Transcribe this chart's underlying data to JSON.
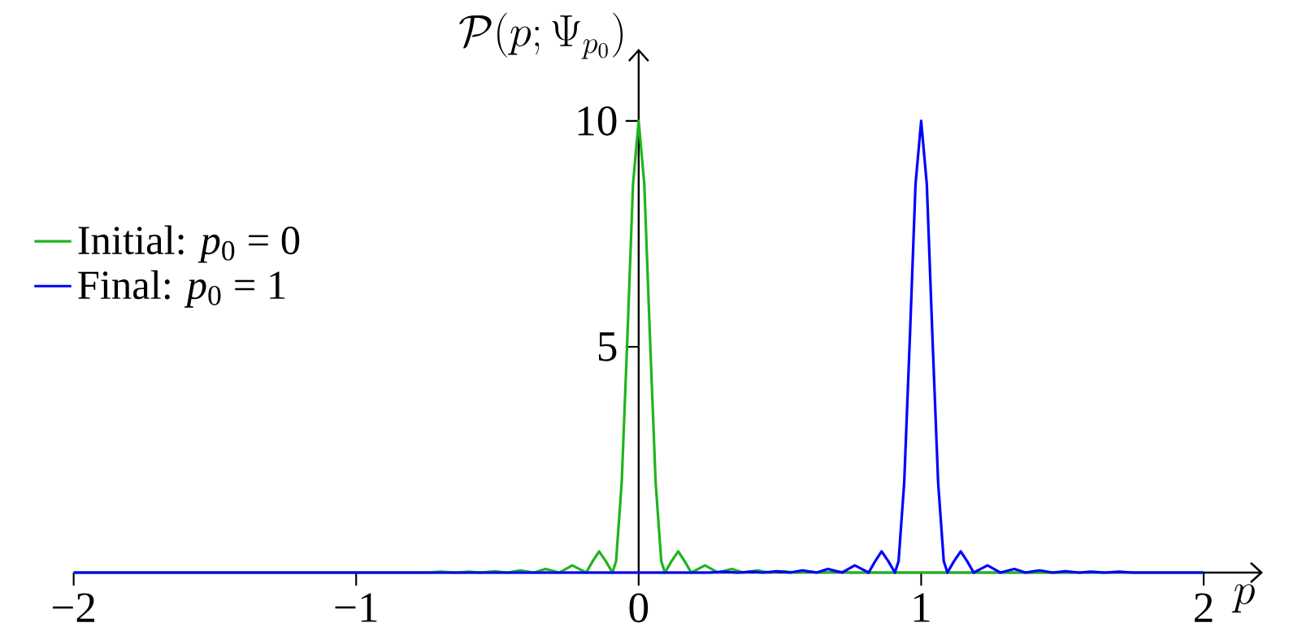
{
  "chart_data": {
    "type": "line",
    "xlabel": "p",
    "ylabel": "\\mathcal{P}(p;\\Psi_{p_0})",
    "xlim": [
      -2,
      2.21
    ],
    "ylim": [
      0,
      11.6
    ],
    "xticks": [
      {
        "value": -2,
        "label": "−2"
      },
      {
        "value": -1,
        "label": "−1"
      },
      0,
      1,
      2
    ],
    "yticks": [
      5,
      10
    ],
    "legend": "top left",
    "series": [
      {
        "name": "Initial: *p*$_{0}$ = 0",
        "color": "#1fb41f",
        "x": [
          -2,
          -0.75,
          -0.7,
          -0.65,
          -0.6,
          -0.56,
          -0.51,
          -0.465,
          -0.42,
          -0.37,
          -0.35,
          -0.33,
          -0.305,
          -0.28,
          -0.258,
          -0.235,
          -0.21,
          -0.186,
          -0.163,
          -0.14,
          -0.116,
          -0.093,
          -0.08,
          -0.06,
          -0.04,
          -0.02,
          0,
          0.02,
          0.04,
          0.06,
          0.08,
          0.093,
          0.116,
          0.14,
          0.163,
          0.186,
          0.21,
          0.235,
          0.258,
          0.28,
          0.305,
          0.33,
          0.35,
          0.37,
          0.42,
          0.465,
          0.51,
          0.56,
          0.6,
          0.65,
          0.7,
          0.75,
          2
        ],
        "values": [
          0,
          0,
          0.02,
          0,
          0.02,
          0,
          0.03,
          0,
          0.05,
          0,
          0.04,
          0.08,
          0.04,
          0,
          0.08,
          0.16,
          0.08,
          0,
          0.25,
          0.47,
          0.25,
          0,
          0.25,
          2.0,
          5.2,
          8.6,
          10,
          8.6,
          5.2,
          2.0,
          0.25,
          0,
          0.25,
          0.47,
          0.25,
          0,
          0.08,
          0.16,
          0.08,
          0,
          0.04,
          0.08,
          0.04,
          0,
          0.05,
          0,
          0.03,
          0,
          0.02,
          0,
          0.02,
          0,
          0
        ]
      },
      {
        "name": "Final: *p*$_{0}$ = 1",
        "color": "#0000ff",
        "x": [
          -2,
          0.25,
          0.3,
          0.35,
          0.4,
          0.44,
          0.49,
          0.535,
          0.58,
          0.63,
          0.65,
          0.67,
          0.695,
          0.72,
          0.742,
          0.765,
          0.79,
          0.814,
          0.837,
          0.86,
          0.884,
          0.907,
          0.92,
          0.94,
          0.96,
          0.98,
          1,
          1.02,
          1.04,
          1.06,
          1.08,
          1.093,
          1.116,
          1.14,
          1.163,
          1.186,
          1.21,
          1.235,
          1.258,
          1.28,
          1.305,
          1.33,
          1.35,
          1.37,
          1.42,
          1.465,
          1.51,
          1.56,
          1.6,
          1.65,
          1.7,
          1.75,
          2
        ],
        "values": [
          0,
          0,
          0.02,
          0,
          0.02,
          0,
          0.03,
          0,
          0.05,
          0,
          0.04,
          0.08,
          0.04,
          0,
          0.08,
          0.16,
          0.08,
          0,
          0.25,
          0.47,
          0.25,
          0,
          0.25,
          2.0,
          5.2,
          8.6,
          10,
          8.6,
          5.2,
          2.0,
          0.25,
          0,
          0.25,
          0.47,
          0.25,
          0,
          0.08,
          0.16,
          0.08,
          0,
          0.04,
          0.08,
          0.04,
          0,
          0.05,
          0,
          0.03,
          0,
          0.02,
          0,
          0.02,
          0,
          0
        ]
      }
    ]
  }
}
